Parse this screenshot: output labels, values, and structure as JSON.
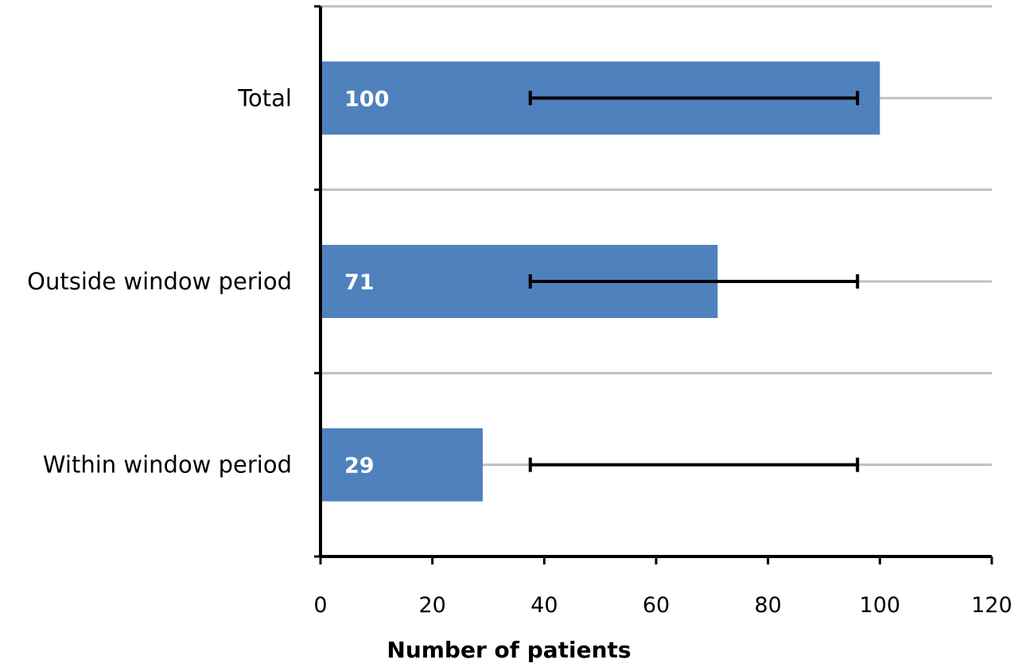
{
  "chart_data": {
    "type": "bar",
    "orientation": "horizontal",
    "categories": [
      "Total",
      "Outside window period",
      "Within window period"
    ],
    "values": [
      100,
      71,
      29
    ],
    "data_labels": [
      "100",
      "71",
      "29"
    ],
    "error_bars": [
      {
        "low": 37.5,
        "high": 96
      },
      {
        "low": 37.5,
        "high": 96
      },
      {
        "low": 37.5,
        "high": 96
      }
    ],
    "xlabel": "Number of patients",
    "ylabel": "",
    "xlim": [
      0,
      120
    ],
    "x_ticks": [
      0,
      20,
      40,
      60,
      80,
      100,
      120
    ],
    "x_tick_labels": [
      "0",
      "20",
      "40",
      "60",
      "80",
      "100",
      "120"
    ],
    "grid": "horizontal",
    "legend": "none",
    "colors": {
      "bar": "#4f81bd",
      "gridline": "#bfbfbf",
      "axis": "#000000",
      "error_bar": "#000000",
      "bar_value_text": "#ffffff"
    }
  }
}
